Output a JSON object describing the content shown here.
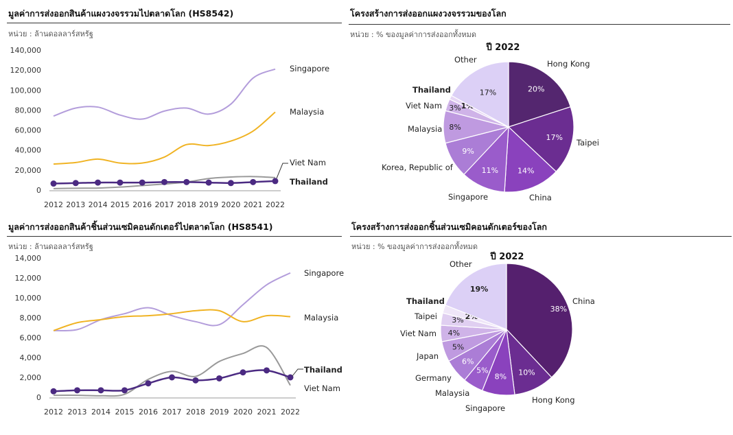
{
  "charts": [
    {
      "id": "c1",
      "title": "มูลค่าการส่งออกสินค้าแผงวงจรรวมไปตลาดโลก  (HS8542)",
      "unit": "หน่วย : ล้านดอลลาร์สหรัฐ"
    },
    {
      "id": "c2",
      "title": "โครงสร้างการส่งออกแผงวงจรรวมของโลก",
      "unit": "หน่วย : % ของมูลค่าการส่งออกทั้งหมด"
    },
    {
      "id": "c3",
      "title": "มูลค่าการส่งออกสินค้าชิ้นส่วนเซมิคอนดักเตอร์ไปตลาดโลก  (HS8541)",
      "unit": "หน่วย : ล้านดอลลาร์สหรัฐ"
    },
    {
      "id": "c4",
      "title": "โครงสร้างการส่งออกชิ้นส่วนเซมิคอนดักเตอร์ของโลก",
      "unit": "หน่วย : % ของมูลค่าการส่งออกทั้งหมด"
    }
  ],
  "chart_data": [
    {
      "type": "line",
      "x": [
        "2012",
        "2013",
        "2014",
        "2015",
        "2016",
        "2017",
        "2018",
        "2019",
        "2020",
        "2021",
        "2022"
      ],
      "ylim": [
        0,
        140000
      ],
      "yticks": [
        "0",
        "20,000",
        "40,000",
        "60,000",
        "80,000",
        "100,000",
        "120,000",
        "140,000"
      ],
      "grid": false,
      "series": [
        {
          "name": "Singapore",
          "color": "#b39ddb",
          "values": [
            74000,
            82000,
            83000,
            75000,
            71000,
            79000,
            82000,
            76000,
            86000,
            112000,
            121000
          ]
        },
        {
          "name": "Malaysia",
          "color": "#f0b323",
          "values": [
            26000,
            27500,
            31000,
            27000,
            27000,
            33000,
            45500,
            44500,
            49000,
            59000,
            78000
          ]
        },
        {
          "name": "Viet Nam",
          "color": "#999999",
          "values": [
            1500,
            1800,
            2000,
            3000,
            4500,
            6000,
            8000,
            11500,
            13000,
            13500,
            12500
          ]
        },
        {
          "name": "Thailand",
          "color": "#4b2a82",
          "markers": true,
          "values": [
            6500,
            7000,
            7500,
            7500,
            7500,
            8000,
            8000,
            7500,
            7000,
            8000,
            9000
          ]
        }
      ]
    },
    {
      "type": "pie",
      "title": "ปี 2022",
      "slices": [
        {
          "name": "Hong Kong",
          "value": 20,
          "label": "20%",
          "color": "#54266f"
        },
        {
          "name": "Taipei",
          "value": 17,
          "label": "17%",
          "color": "#6b2d91"
        },
        {
          "name": "China",
          "value": 14,
          "label": "14%",
          "color": "#8a42bd"
        },
        {
          "name": "Singapore",
          "value": 11,
          "label": "11%",
          "color": "#9a5ccb"
        },
        {
          "name": "Korea, Republic of",
          "value": 9,
          "label": "9%",
          "color": "#ab7dd6"
        },
        {
          "name": "Malaysia",
          "value": 8,
          "label": "8%",
          "color": "#bf9ae0"
        },
        {
          "name": "Viet Nam",
          "value": 3,
          "label": "3%",
          "color": "#cfb3e8"
        },
        {
          "name": "Thailand",
          "value": 1,
          "label": "1%",
          "color": "#e6d6f4"
        },
        {
          "name": "Other",
          "value": 17,
          "label": "17%",
          "color": "#dcd0f6"
        }
      ]
    },
    {
      "type": "line",
      "x": [
        "2012",
        "2013",
        "2014",
        "2015",
        "2016",
        "2017",
        "2018",
        "2019",
        "2020",
        "2021",
        "2022"
      ],
      "ylim": [
        0,
        14000
      ],
      "yticks": [
        "0",
        "2,000",
        "4,000",
        "6,000",
        "8,000",
        "10,000",
        "12,000",
        "14,000"
      ],
      "grid": false,
      "series": [
        {
          "name": "Singapore",
          "color": "#b39ddb",
          "values": [
            6700,
            6800,
            7800,
            8400,
            9000,
            8200,
            7600,
            7300,
            9300,
            11300,
            12500
          ]
        },
        {
          "name": "Malaysia",
          "color": "#f0b323",
          "values": [
            6700,
            7500,
            7800,
            8100,
            8200,
            8400,
            8700,
            8700,
            7600,
            8200,
            8100
          ]
        },
        {
          "name": "Viet Nam",
          "color": "#999999",
          "values": [
            200,
            200,
            150,
            300,
            1800,
            2600,
            2100,
            3600,
            4400,
            5000,
            1200
          ]
        },
        {
          "name": "Thailand",
          "color": "#4b2a82",
          "markers": true,
          "values": [
            600,
            700,
            700,
            700,
            1400,
            2000,
            1700,
            1900,
            2500,
            2700,
            2000
          ]
        }
      ]
    },
    {
      "type": "pie",
      "title": "ปี 2022",
      "slices": [
        {
          "name": "China",
          "value": 38,
          "label": "38%",
          "color": "#55206e"
        },
        {
          "name": "Hong Kong",
          "value": 10,
          "label": "10%",
          "color": "#6b2d91"
        },
        {
          "name": "Singapore",
          "value": 8,
          "label": "8%",
          "color": "#8a42bd"
        },
        {
          "name": "Malaysia",
          "value": 5,
          "label": "5%",
          "color": "#9a5ccb"
        },
        {
          "name": "Germany",
          "value": 6,
          "label": "6%",
          "color": "#ab7dd6"
        },
        {
          "name": "Japan",
          "value": 5,
          "label": "5%",
          "color": "#bf9ae0"
        },
        {
          "name": "Viet Nam",
          "value": 4,
          "label": "4%",
          "color": "#cfb3e8"
        },
        {
          "name": "Taipei",
          "value": 3,
          "label": "3%",
          "color": "#e0cff1"
        },
        {
          "name": "Thailand",
          "value": 2,
          "label": "2%",
          "color": "#efe6f8"
        },
        {
          "name": "Other",
          "value": 19,
          "label": "19%",
          "color": "#dcd0f6"
        }
      ]
    }
  ]
}
